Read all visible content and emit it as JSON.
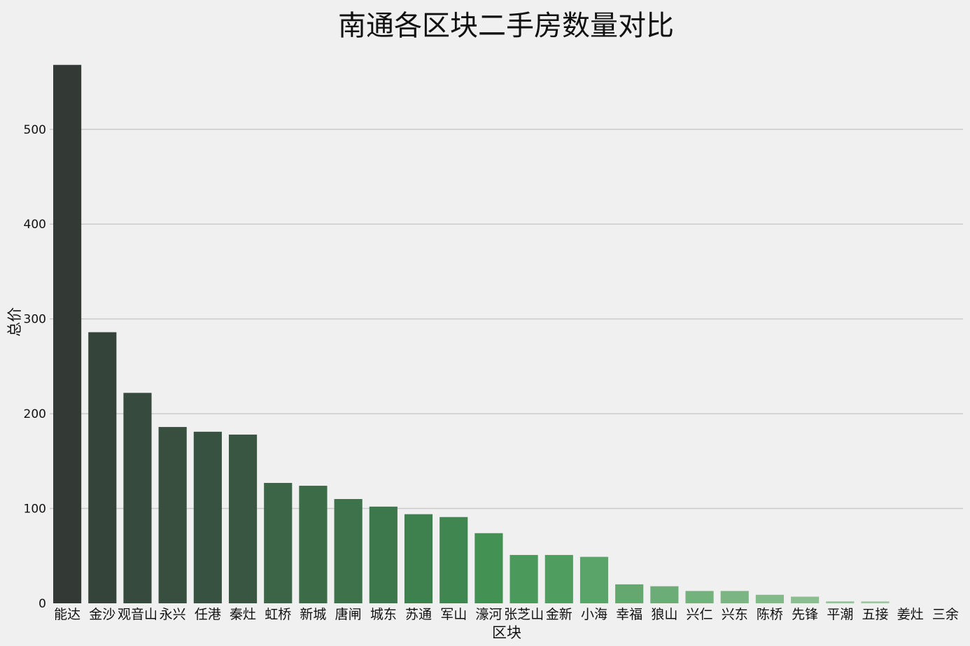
{
  "chart_data": {
    "type": "bar",
    "title": "南通各区块二手房数量对比",
    "xlabel": "区块",
    "ylabel": "总价",
    "ylim": [
      0,
      570
    ],
    "yticks": [
      0,
      100,
      200,
      300,
      400,
      500
    ],
    "grid": "horizontal",
    "categories": [
      "能达",
      "金沙",
      "观音山",
      "永兴",
      "任港",
      "秦灶",
      "虹桥",
      "新城",
      "唐闸",
      "城东",
      "苏通",
      "军山",
      "濠河",
      "张芝山",
      "金新",
      "小海",
      "幸福",
      "狼山",
      "兴仁",
      "兴东",
      "陈桥",
      "先锋",
      "平潮",
      "五接",
      "姜灶",
      "三余"
    ],
    "values": [
      568,
      286,
      222,
      186,
      181,
      178,
      127,
      124,
      110,
      102,
      94,
      91,
      74,
      51,
      51,
      49,
      20,
      18,
      13,
      13,
      9,
      7,
      2,
      2,
      0,
      0
    ],
    "colors": [
      "#333a36",
      "#35443a",
      "#364a3d",
      "#384f3f",
      "#385241",
      "#395643",
      "#3b6546",
      "#3c6b48",
      "#3d724b",
      "#3d784d",
      "#3f804f",
      "#408651",
      "#439253",
      "#4b9a5c",
      "#509d60",
      "#5aa369",
      "#64a870",
      "#6cad77",
      "#73b17d",
      "#7ab583",
      "#82ba89",
      "#8bbf91",
      "#93c398",
      "#9bc89f",
      "#a3cda7",
      "#accfb0"
    ]
  }
}
